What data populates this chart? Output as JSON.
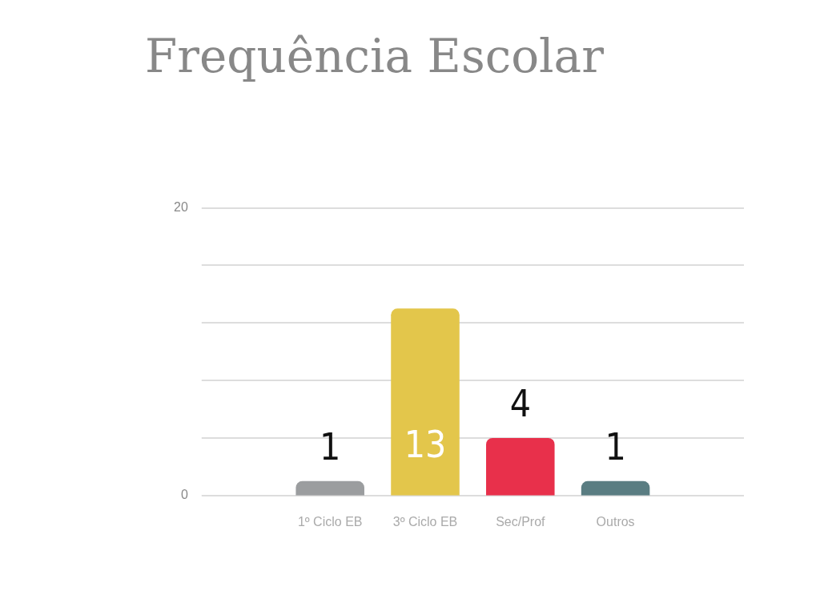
{
  "chart_data": {
    "type": "bar",
    "title": "Frequência Escolar",
    "categories": [
      "1º Ciclo EB",
      "3º Ciclo EB",
      "Sec/Prof",
      "Outros"
    ],
    "values": [
      1,
      13,
      4,
      1
    ],
    "colors": [
      "#9b9d9f",
      "#e3c64b",
      "#e8304b",
      "#5a7d82"
    ],
    "ylim": [
      0,
      20
    ],
    "yticks": [
      0,
      {
        "value": 4,
        "label": null
      },
      {
        "value": 8,
        "label": null
      },
      {
        "value": 12,
        "label": null
      },
      {
        "value": 16,
        "label": null
      },
      20
    ],
    "grid": true,
    "data_labels": true
  }
}
